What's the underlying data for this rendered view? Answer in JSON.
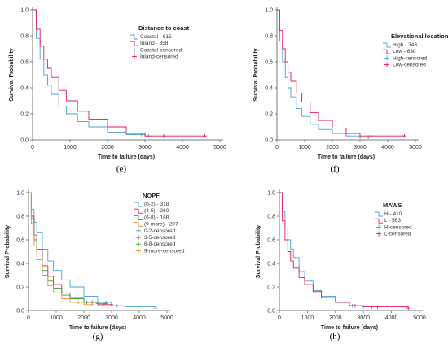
{
  "colors": {
    "blue": "#4a9fd8",
    "red": "#e8174f",
    "green": "#3a9a3a",
    "orange": "#f0913a"
  },
  "chart_data": [
    {
      "type": "line",
      "caption": "(e)",
      "title": "",
      "xlabel": "Time to failure (days)",
      "ylabel": "Survival Probability",
      "xlim": [
        0,
        5000
      ],
      "ylim": [
        0,
        1
      ],
      "xticks": [
        "0",
        "1000",
        "2000",
        "3000",
        "4000",
        "5000"
      ],
      "yticks": [
        "0.0",
        "0.2",
        "0.4",
        "0.6",
        "0.8",
        "1.0"
      ],
      "legend": {
        "title": "Distance to coast",
        "position": "top-right",
        "censored_labels": [
          "Coastal-censored",
          "Inland-censored"
        ]
      },
      "series": [
        {
          "name": "Coastal - 615",
          "color": "blue",
          "x": [
            0,
            100,
            200,
            300,
            400,
            500,
            700,
            900,
            1200,
            1500,
            2000,
            2500,
            3000,
            3100
          ],
          "y": [
            1.0,
            0.78,
            0.62,
            0.5,
            0.42,
            0.35,
            0.26,
            0.2,
            0.14,
            0.1,
            0.06,
            0.04,
            0.03,
            0.03
          ],
          "censored_x": [
            2700,
            2900,
            3100
          ]
        },
        {
          "name": "Inland - 358",
          "color": "red",
          "x": [
            0,
            100,
            200,
            300,
            400,
            500,
            700,
            900,
            1200,
            1500,
            2000,
            2500,
            3000,
            4600
          ],
          "y": [
            1.0,
            0.85,
            0.72,
            0.62,
            0.55,
            0.48,
            0.38,
            0.3,
            0.22,
            0.16,
            0.1,
            0.05,
            0.03,
            0.03
          ],
          "censored_x": [
            2600,
            3500,
            4600
          ]
        }
      ]
    },
    {
      "type": "line",
      "caption": "(f)",
      "title": "",
      "xlabel": "Time to failure (days)",
      "ylabel": "Survival Probability",
      "xlim": [
        0,
        5000
      ],
      "ylim": [
        0,
        1
      ],
      "xticks": [
        "0",
        "1000",
        "2000",
        "3000",
        "4000",
        "5000"
      ],
      "yticks": [
        "0.0",
        "0.2",
        "0.4",
        "0.6",
        "0.8",
        "1.0"
      ],
      "legend": {
        "title": "Elevational location",
        "position": "top-right",
        "censored_labels": [
          "High-censored",
          "Low-censored"
        ]
      },
      "series": [
        {
          "name": "High - 343",
          "color": "blue",
          "x": [
            0,
            100,
            200,
            300,
            400,
            500,
            700,
            900,
            1200,
            1500,
            2000,
            2500,
            3000,
            3300
          ],
          "y": [
            1.0,
            0.76,
            0.6,
            0.48,
            0.4,
            0.33,
            0.24,
            0.18,
            0.12,
            0.08,
            0.05,
            0.03,
            0.02,
            0.02
          ],
          "censored_x": [
            2600,
            3000,
            3300
          ]
        },
        {
          "name": "Low - 630",
          "color": "red",
          "x": [
            0,
            100,
            200,
            300,
            400,
            500,
            700,
            900,
            1200,
            1500,
            2000,
            2500,
            3000,
            4600
          ],
          "y": [
            1.0,
            0.84,
            0.7,
            0.6,
            0.52,
            0.45,
            0.36,
            0.29,
            0.21,
            0.15,
            0.09,
            0.05,
            0.03,
            0.03
          ],
          "censored_x": [
            2500,
            3400,
            4600
          ]
        }
      ]
    },
    {
      "type": "line",
      "caption": "(g)",
      "title": "",
      "xlabel": "Time to failure (days)",
      "ylabel": "Survival Probability",
      "xlim": [
        0,
        5000
      ],
      "ylim": [
        0,
        1
      ],
      "xticks": [
        "0",
        "1000",
        "2000",
        "3000",
        "4000",
        "5000"
      ],
      "yticks": [
        "0.0",
        "0.2",
        "0.4",
        "0.6",
        "0.8",
        "1.0"
      ],
      "legend": {
        "title": "NOPF",
        "position": "top-right",
        "censored_labels": [
          "0-2-censored",
          "3-5-censored",
          "6-8-censored",
          "9-more-censored"
        ]
      },
      "series": [
        {
          "name": "(0-2) - 318",
          "color": "blue",
          "x": [
            0,
            100,
            200,
            300,
            500,
            700,
            900,
            1200,
            1500,
            2000,
            2500,
            3000,
            3500,
            4600
          ],
          "y": [
            1.0,
            0.86,
            0.75,
            0.66,
            0.52,
            0.42,
            0.34,
            0.26,
            0.2,
            0.12,
            0.07,
            0.04,
            0.03,
            0.02
          ],
          "censored_x": [
            2800,
            3200,
            4600
          ]
        },
        {
          "name": "(3-5) - 260",
          "color": "red",
          "x": [
            0,
            100,
            200,
            300,
            500,
            700,
            900,
            1200,
            1500,
            2000,
            2500,
            3000
          ],
          "y": [
            1.0,
            0.8,
            0.64,
            0.52,
            0.38,
            0.29,
            0.22,
            0.15,
            0.11,
            0.07,
            0.05,
            0.05
          ],
          "censored_x": [
            2300,
            2700,
            3000
          ]
        },
        {
          "name": "(6-8) - 188",
          "color": "green",
          "x": [
            0,
            100,
            200,
            300,
            500,
            700,
            900,
            1200,
            1500,
            2000,
            2500,
            2800
          ],
          "y": [
            1.0,
            0.78,
            0.6,
            0.48,
            0.34,
            0.25,
            0.19,
            0.13,
            0.1,
            0.07,
            0.06,
            0.06
          ],
          "censored_x": [
            2100,
            2500,
            2800
          ]
        },
        {
          "name": "(9-more) - 207",
          "color": "orange",
          "x": [
            0,
            100,
            200,
            300,
            500,
            700,
            900,
            1200,
            1500,
            2000,
            2300
          ],
          "y": [
            1.0,
            0.74,
            0.55,
            0.43,
            0.3,
            0.21,
            0.15,
            0.1,
            0.07,
            0.05,
            0.05
          ],
          "censored_x": [
            1800,
            2300
          ]
        }
      ]
    },
    {
      "type": "line",
      "caption": "(h)",
      "title": "",
      "xlabel": "Time to failure (days)",
      "ylabel": "Survival Probability",
      "xlim": [
        0,
        5000
      ],
      "ylim": [
        0,
        1
      ],
      "xticks": [
        "0",
        "1000",
        "2000",
        "3000",
        "4000",
        "5000"
      ],
      "yticks": [
        "0.0",
        "0.2",
        "0.4",
        "0.6",
        "0.8",
        "1.0"
      ],
      "legend": {
        "title": "MAWS",
        "position": "top-right",
        "censored_labels": [
          "H-censored",
          "L-censored"
        ]
      },
      "series": [
        {
          "name": "H - 410",
          "color": "blue",
          "x": [
            0,
            100,
            200,
            300,
            400,
            500,
            700,
            900,
            1200,
            1500,
            2000,
            2500,
            3000,
            3300
          ],
          "y": [
            1.0,
            0.84,
            0.7,
            0.6,
            0.52,
            0.45,
            0.33,
            0.25,
            0.17,
            0.12,
            0.07,
            0.04,
            0.03,
            0.03
          ],
          "censored_x": [
            2600,
            3000,
            3300
          ]
        },
        {
          "name": "L - 563",
          "color": "red",
          "x": [
            0,
            100,
            200,
            300,
            400,
            500,
            700,
            900,
            1200,
            1500,
            2000,
            2500,
            3000,
            4600
          ],
          "y": [
            1.0,
            0.76,
            0.6,
            0.5,
            0.42,
            0.36,
            0.28,
            0.22,
            0.16,
            0.11,
            0.07,
            0.04,
            0.03,
            0.02
          ],
          "censored_x": [
            2700,
            3500,
            4600
          ]
        }
      ]
    }
  ]
}
